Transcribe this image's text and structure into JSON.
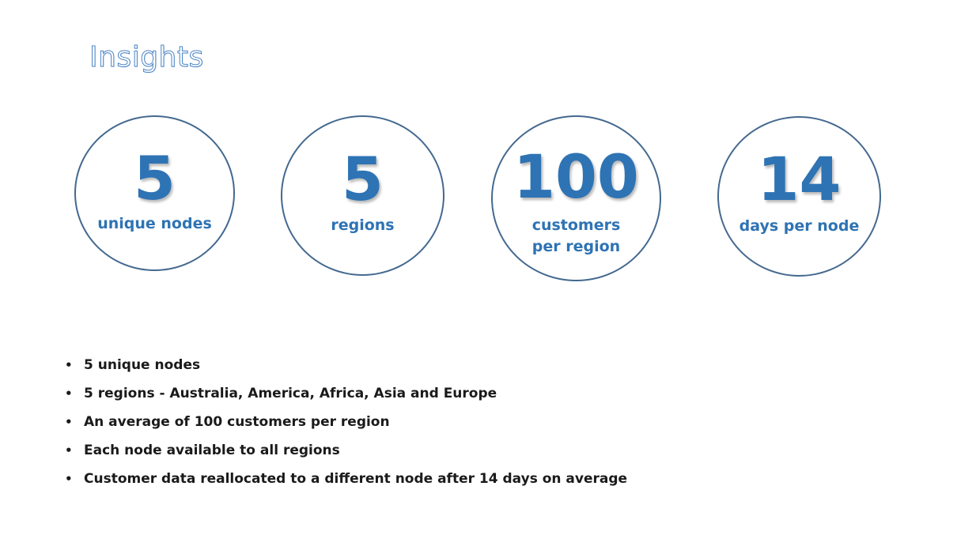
{
  "title": "Insights",
  "stats": [
    {
      "value": "5",
      "label": "unique nodes"
    },
    {
      "value": "5",
      "label": "regions"
    },
    {
      "value": "100",
      "label": "customers\nper region"
    },
    {
      "value": "14",
      "label": "days per node"
    }
  ],
  "bullets": [
    "5 unique nodes",
    "5 regions - Australia, America, Africa, Asia and Europe",
    "An average of 100 customers per region",
    "Each node available to all regions",
    "Customer data reallocated to a different node after 14 days on average"
  ],
  "bullet_glyph": "•",
  "colors": {
    "accent": "#2e73b4",
    "circle_border": "#44698f",
    "title_outline": "#4d86c6",
    "text": "#1a1a1a"
  }
}
